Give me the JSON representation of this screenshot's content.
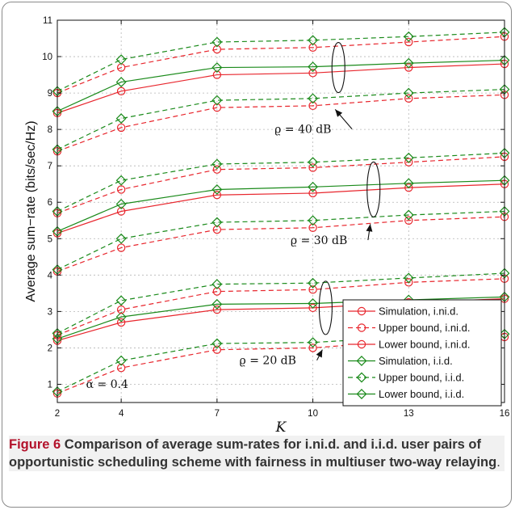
{
  "figure": {
    "caption_lead": "Figure 6",
    "caption_text": "Comparison of average sum-rates for i.ni.d. and i.i.d. user pairs of opportunistic scheduling scheme with fairness in multiuser two-way relaying",
    "caption_end": "."
  },
  "chart_data": {
    "type": "line",
    "xlabel": "K",
    "ylabel": "Average sum−rate (bits/sec/Hz)",
    "x": [
      2,
      4,
      7,
      10,
      13,
      16
    ],
    "xticks": [
      "2",
      "4",
      "7",
      "10",
      "13",
      "16"
    ],
    "xlim": [
      2,
      16
    ],
    "yticks": [
      "1",
      "2",
      "3",
      "4",
      "5",
      "6",
      "7",
      "8",
      "9",
      "10",
      "11"
    ],
    "ylim": [
      0.5,
      11
    ],
    "grid": true,
    "legend_position": "bottom-right",
    "colors": {
      "ind": "#e8262d",
      "iid": "#1a8a1a"
    },
    "legend": [
      {
        "label": "Simulation, i.ni.d.",
        "color": "#e8262d",
        "dash": "solid",
        "marker": "circle"
      },
      {
        "label": "Upper bound, i.ni.d.",
        "color": "#e8262d",
        "dash": "dashed",
        "marker": "circle"
      },
      {
        "label": "Lower bound, i.ni.d.",
        "color": "#e8262d",
        "dash": "solid",
        "marker": "circle"
      },
      {
        "label": "Simulation, i.i.d.",
        "color": "#1a8a1a",
        "dash": "solid",
        "marker": "diamond"
      },
      {
        "label": "Upper bound, i.i.d.",
        "color": "#1a8a1a",
        "dash": "dashed",
        "marker": "diamond"
      },
      {
        "label": "Lower bound, i.i.d.",
        "color": "#1a8a1a",
        "dash": "solid",
        "marker": "diamond"
      }
    ],
    "groups": [
      {
        "label": "ϱ = 40 dB",
        "series": [
          {
            "kind": "sim-ind",
            "values": [
              8.45,
              9.05,
              9.5,
              9.55,
              9.7,
              9.8
            ]
          },
          {
            "kind": "sim-iid",
            "values": [
              8.5,
              9.3,
              9.7,
              9.72,
              9.82,
              9.9
            ]
          },
          {
            "kind": "ub-ind",
            "values": [
              9.0,
              9.7,
              10.2,
              10.25,
              10.4,
              10.55
            ]
          },
          {
            "kind": "ub-iid",
            "values": [
              9.05,
              9.92,
              10.4,
              10.45,
              10.55,
              10.67
            ]
          },
          {
            "kind": "lb-ind",
            "values": [
              7.4,
              8.05,
              8.6,
              8.65,
              8.85,
              8.95
            ]
          },
          {
            "kind": "lb-iid",
            "values": [
              7.45,
              8.3,
              8.8,
              8.85,
              9.0,
              9.1
            ]
          }
        ]
      },
      {
        "label": "ϱ = 30 dB",
        "series": [
          {
            "kind": "sim-ind",
            "values": [
              5.15,
              5.75,
              6.2,
              6.25,
              6.4,
              6.5
            ]
          },
          {
            "kind": "sim-iid",
            "values": [
              5.2,
              5.95,
              6.35,
              6.42,
              6.52,
              6.6
            ]
          },
          {
            "kind": "ub-ind",
            "values": [
              5.7,
              6.35,
              6.9,
              6.95,
              7.1,
              7.25
            ]
          },
          {
            "kind": "ub-iid",
            "values": [
              5.75,
              6.6,
              7.05,
              7.1,
              7.22,
              7.35
            ]
          },
          {
            "kind": "lb-ind",
            "values": [
              4.1,
              4.75,
              5.25,
              5.3,
              5.5,
              5.6
            ]
          },
          {
            "kind": "lb-iid",
            "values": [
              4.15,
              5.0,
              5.45,
              5.5,
              5.65,
              5.75
            ]
          }
        ]
      },
      {
        "label": "ϱ = 20 dB",
        "series": [
          {
            "kind": "sim-ind",
            "values": [
              2.2,
              2.7,
              3.05,
              3.1,
              3.25,
              3.35
            ]
          },
          {
            "kind": "sim-iid",
            "values": [
              2.25,
              2.85,
              3.2,
              3.22,
              3.32,
              3.4
            ]
          },
          {
            "kind": "ub-ind",
            "values": [
              2.35,
              3.05,
              3.55,
              3.6,
              3.8,
              3.9
            ]
          },
          {
            "kind": "ub-iid",
            "values": [
              2.4,
              3.3,
              3.75,
              3.78,
              3.92,
              4.05
            ]
          },
          {
            "kind": "lb-ind",
            "values": [
              0.75,
              1.45,
              1.95,
              2.0,
              2.2,
              2.3
            ]
          },
          {
            "kind": "lb-iid",
            "values": [
              0.8,
              1.65,
              2.12,
              2.15,
              2.3,
              2.38
            ]
          }
        ]
      }
    ],
    "annotation": "α = 0.4"
  }
}
